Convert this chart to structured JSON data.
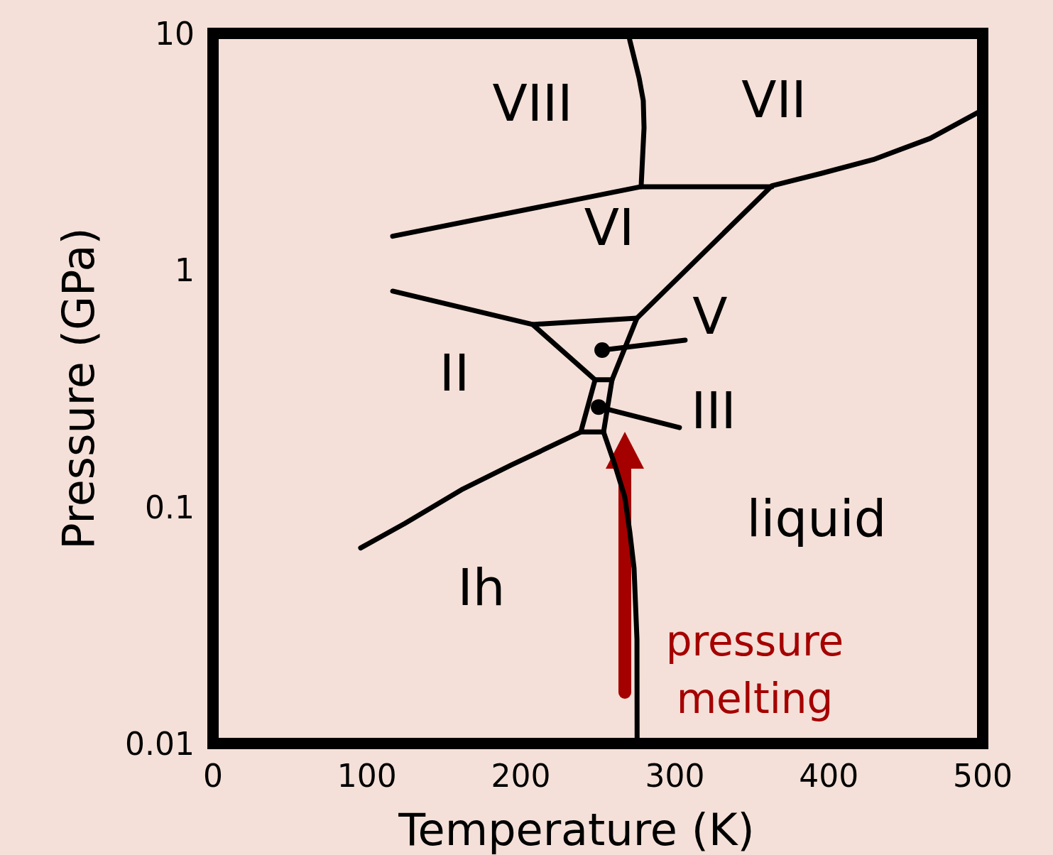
{
  "chart_data": {
    "type": "line",
    "xlabel": "Temperature (K)",
    "ylabel": "Pressure (GPa)",
    "log": "y",
    "xlim": [
      0,
      500
    ],
    "xticks": [
      0,
      100,
      200,
      300,
      400,
      500
    ],
    "ylim": [
      0.01,
      10
    ],
    "yticks": [
      0.01,
      0.1,
      1,
      10
    ],
    "grid": false,
    "line_style": "solid",
    "series": [
      {
        "color": "#000000",
        "x": [
          95.9,
          124.5,
          161.4,
          193.7,
          238.9,
          248.2,
          207.6,
          116.7
        ],
        "values": [
          0.067,
          0.085,
          0.118,
          0.15,
          0.207,
          0.344,
          0.589,
          0.815
        ]
      },
      {
        "color": "#000000",
        "x": [
          253.7,
          259.2,
          275.4,
          363.0,
          395.0,
          429.0,
          465.9,
          498.2
        ],
        "values": [
          0.207,
          0.344,
          0.627,
          2.27,
          2.56,
          2.93,
          3.6,
          4.68
        ]
      },
      {
        "color": "#000000",
        "x": [
          116.7,
          278.1,
          363.0
        ],
        "values": [
          1.39,
          2.25,
          2.25
        ]
      },
      {
        "color": "#000000",
        "x": [
          278.1,
          280.0,
          279.5,
          276.8,
          270.8,
          269.8
        ],
        "values": [
          2.25,
          3.99,
          5.2,
          6.48,
          9.33,
          10
        ]
      },
      {
        "color": "#000000",
        "x": [
          253.7,
          261.1,
          267.5,
          270.8,
          273.5,
          275.4,
          275.5
        ],
        "values": [
          0.207,
          0.15,
          0.11,
          0.0778,
          0.0551,
          0.0276,
          0.01
        ]
      },
      {
        "color": "#000000",
        "x": [
          238.9,
          253.7
        ],
        "values": [
          0.207,
          0.207
        ]
      },
      {
        "color": "#000000",
        "x": [
          248.2,
          259.2
        ],
        "values": [
          0.344,
          0.344
        ]
      },
      {
        "color": "#000000",
        "x": [
          207.6,
          275.4
        ],
        "values": [
          0.589,
          0.627
        ]
      },
      {
        "color": "#000000",
        "x": [
          252.8,
          306.7
        ],
        "values": [
          0.459,
          0.506
        ]
      },
      {
        "color": "#000000",
        "x": [
          250.5,
          303.0
        ],
        "values": [
          0.264,
          0.216
        ]
      },
      {
        "type": "scatter",
        "marker": "circle",
        "color": "#000000",
        "x": [
          252.8,
          250.5
        ],
        "values": [
          0.459,
          0.264
        ]
      }
    ],
    "annotations": [
      "VIII",
      "VII",
      "VI",
      "V",
      "II",
      "III",
      "liquid",
      "Ih",
      "pressure melting"
    ]
  }
}
